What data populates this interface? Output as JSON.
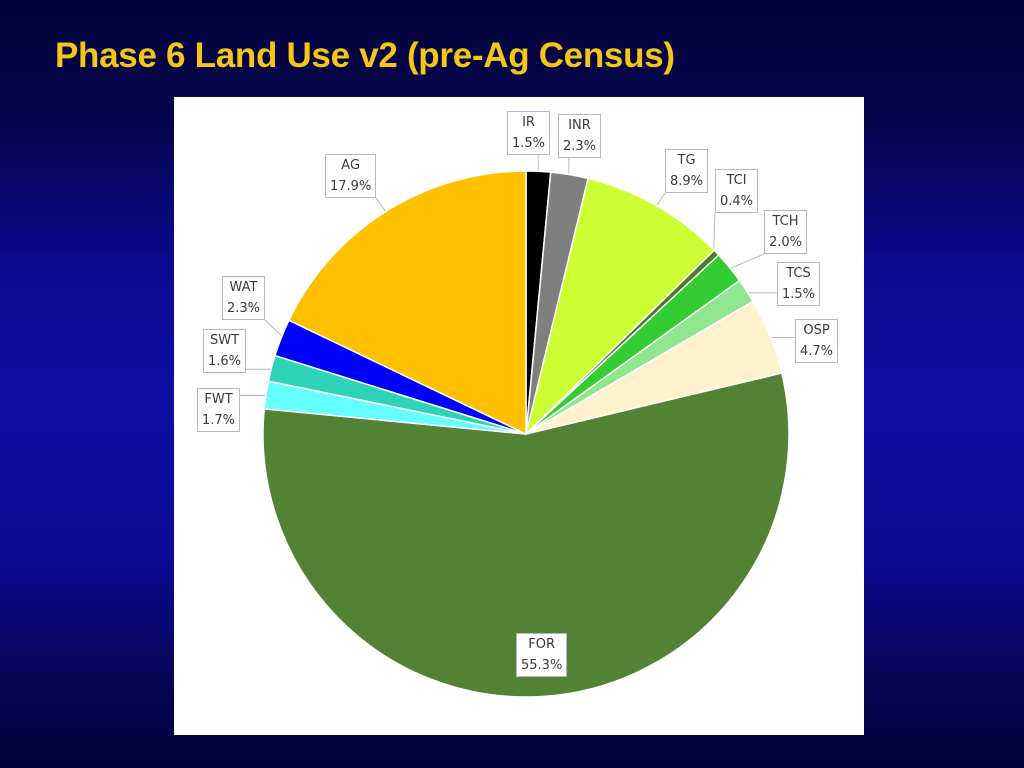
{
  "slide": {
    "title": "Phase 6 Land Use v2 (pre-Ag Census)"
  },
  "chart_data": {
    "type": "pie",
    "title": "",
    "start_angle_deg": 0,
    "direction": "clockwise",
    "slices": [
      {
        "label": "IR",
        "value_label": "1.5%",
        "value": 1.5,
        "color": "#000000"
      },
      {
        "label": "INR",
        "value_label": "2.3%",
        "value": 2.3,
        "color": "#7f7f7f"
      },
      {
        "label": "TG",
        "value_label": "8.9%",
        "value": 8.9,
        "color": "#ccff33"
      },
      {
        "label": "TCI",
        "value_label": "0.4%",
        "value": 0.4,
        "color": "#4e7a2a"
      },
      {
        "label": "TCH",
        "value_label": "2.0%",
        "value": 2.0,
        "color": "#33cc33"
      },
      {
        "label": "TCS",
        "value_label": "1.5%",
        "value": 1.5,
        "color": "#8ee68e"
      },
      {
        "label": "OSP",
        "value_label": "4.7%",
        "value": 4.7,
        "color": "#fff2cc"
      },
      {
        "label": "FOR",
        "value_label": "55.3%",
        "value": 55.3,
        "color": "#548235"
      },
      {
        "label": "FWT",
        "value_label": "1.7%",
        "value": 1.7,
        "color": "#66ffff"
      },
      {
        "label": "SWT",
        "value_label": "1.6%",
        "value": 1.6,
        "color": "#2ed3b7"
      },
      {
        "label": "WAT",
        "value_label": "2.3%",
        "value": 2.3,
        "color": "#0000ff"
      },
      {
        "label": "AG",
        "value_label": "17.9%",
        "value": 17.9,
        "color": "#ffc000"
      }
    ]
  }
}
